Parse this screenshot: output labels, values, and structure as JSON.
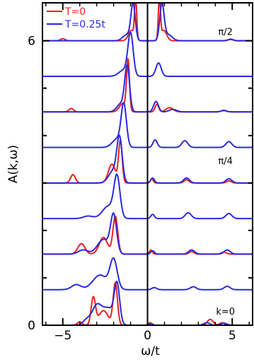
{
  "chart_data": {
    "type": "line",
    "title": "",
    "xlabel": "ω/t",
    "ylabel": "A(k,ω)",
    "xlim": [
      -6.2,
      6.2
    ],
    "ylim": [
      0,
      6.8
    ],
    "x_ticks": [
      -5,
      0,
      5
    ],
    "x_tick_labels": [
      "−5",
      "0",
      "5"
    ],
    "y_ticks": [
      0,
      6
    ],
    "y_tick_labels": [
      "0",
      "6"
    ],
    "grid": false,
    "legend_position": "top-left",
    "vertical_line_x": 0,
    "annotations": [
      {
        "text": "π/2",
        "x": 4.6,
        "y": 6.12
      },
      {
        "text": "π/4",
        "x": 4.6,
        "y": 3.4
      },
      {
        "text": "k=0",
        "x": 4.6,
        "y": 0.22
      }
    ],
    "series": [
      {
        "name": "T=0",
        "color": "#ef1f1f",
        "curves": [
          {
            "offset": 6.0,
            "peaks": [
              [
                -0.7,
                0.95,
                0.09
              ],
              [
                -0.95,
                0.25,
                0.25
              ],
              [
                0.7,
                0.95,
                0.09
              ],
              [
                0.95,
                0.25,
                0.25
              ],
              [
                -5.0,
                0.05,
                0.2
              ],
              [
                4.9,
                0.04,
                0.2
              ]
            ]
          },
          {
            "offset": 4.5,
            "peaks": [
              [
                -1.15,
                1.2,
                0.12
              ],
              [
                -1.45,
                0.2,
                0.3
              ],
              [
                0.55,
                0.18,
                0.15
              ],
              [
                1.3,
                0.1,
                0.3
              ],
              [
                -4.5,
                0.08,
                0.2
              ],
              [
                4.5,
                0.04,
                0.2
              ]
            ]
          },
          {
            "offset": 3.0,
            "peaks": [
              [
                -1.6,
                1.0,
                0.15
              ],
              [
                -2.1,
                0.45,
                0.3
              ],
              [
                -4.4,
                0.2,
                0.2
              ],
              [
                0.25,
                0.1,
                0.12
              ],
              [
                2.3,
                0.08,
                0.2
              ],
              [
                4.8,
                0.05,
                0.2
              ]
            ]
          },
          {
            "offset": 1.5,
            "peaks": [
              [
                -1.9,
                0.9,
                0.2
              ],
              [
                -2.6,
                0.4,
                0.35
              ],
              [
                -3.9,
                0.25,
                0.3
              ],
              [
                0.2,
                0.1,
                0.12
              ],
              [
                2.6,
                0.06,
                0.2
              ],
              [
                4.5,
                0.05,
                0.2
              ]
            ]
          },
          {
            "offset": 0.0,
            "peaks": [
              [
                -3.2,
                0.65,
                0.18
              ],
              [
                -1.9,
                1.0,
                0.18
              ],
              [
                -2.6,
                0.35,
                0.4
              ],
              [
                -4.0,
                0.08,
                0.2
              ],
              [
                0.15,
                0.06,
                0.15
              ],
              [
                3.7,
                0.14,
                0.25
              ],
              [
                4.4,
                0.06,
                0.2
              ]
            ]
          }
        ]
      },
      {
        "name": "T=0.25t",
        "color": "#2a2adc",
        "curves": [
          {
            "offset": 6.0,
            "peaks": [
              [
                -0.85,
                0.85,
                0.18
              ],
              [
                -1.2,
                0.15,
                0.35
              ],
              [
                0.85,
                0.85,
                0.18
              ],
              [
                1.2,
                0.15,
                0.35
              ],
              [
                4.9,
                0.03,
                0.25
              ]
            ]
          },
          {
            "offset": 5.25,
            "peaks": [
              [
                -1.0,
                1.0,
                0.22
              ],
              [
                -1.4,
                0.15,
                0.4
              ],
              [
                0.65,
                0.32,
                0.22
              ]
            ]
          },
          {
            "offset": 4.5,
            "peaks": [
              [
                -1.2,
                1.05,
                0.2
              ],
              [
                -1.55,
                0.2,
                0.35
              ],
              [
                0.5,
                0.25,
                0.2
              ],
              [
                1.5,
                0.06,
                0.3
              ],
              [
                4.5,
                0.03,
                0.25
              ]
            ]
          },
          {
            "offset": 3.75,
            "peaks": [
              [
                -1.4,
                1.0,
                0.22
              ],
              [
                -1.8,
                0.2,
                0.4
              ],
              [
                0.45,
                0.18,
                0.18
              ],
              [
                2.2,
                0.16,
                0.25
              ],
              [
                4.8,
                0.14,
                0.25
              ]
            ]
          },
          {
            "offset": 3.0,
            "peaks": [
              [
                -1.65,
                1.0,
                0.22
              ],
              [
                -2.0,
                0.3,
                0.4
              ],
              [
                0.3,
                0.12,
                0.15
              ],
              [
                2.3,
                0.12,
                0.25
              ],
              [
                4.8,
                0.1,
                0.25
              ]
            ]
          },
          {
            "offset": 2.25,
            "peaks": [
              [
                -1.8,
                0.95,
                0.25
              ],
              [
                -2.3,
                0.3,
                0.5
              ],
              [
                -3.5,
                0.06,
                0.4
              ],
              [
                0.3,
                0.1,
                0.15
              ],
              [
                2.4,
                0.14,
                0.25
              ],
              [
                4.8,
                0.12,
                0.25
              ]
            ]
          },
          {
            "offset": 1.5,
            "peaks": [
              [
                -2.0,
                0.9,
                0.25
              ],
              [
                -2.6,
                0.35,
                0.5
              ],
              [
                -3.8,
                0.1,
                0.4
              ],
              [
                0.3,
                0.08,
                0.15
              ],
              [
                2.6,
                0.1,
                0.25
              ],
              [
                4.7,
                0.1,
                0.25
              ]
            ]
          },
          {
            "offset": 0.75,
            "peaks": [
              [
                -2.0,
                0.7,
                0.3
              ],
              [
                -2.8,
                0.35,
                0.6
              ],
              [
                -4.2,
                0.12,
                0.4
              ],
              [
                0.4,
                0.05,
                0.2
              ],
              [
                2.7,
                0.07,
                0.25
              ],
              [
                4.7,
                0.08,
                0.25
              ]
            ]
          },
          {
            "offset": 0.0,
            "peaks": [
              [
                -3.0,
                0.45,
                0.4
              ],
              [
                -1.8,
                0.9,
                0.22
              ],
              [
                -2.3,
                0.4,
                0.5
              ],
              [
                -3.6,
                0.12,
                0.3
              ],
              [
                0.2,
                0.04,
                0.15
              ],
              [
                3.5,
                0.06,
                0.25
              ],
              [
                4.5,
                0.05,
                0.25
              ]
            ]
          }
        ]
      }
    ]
  }
}
